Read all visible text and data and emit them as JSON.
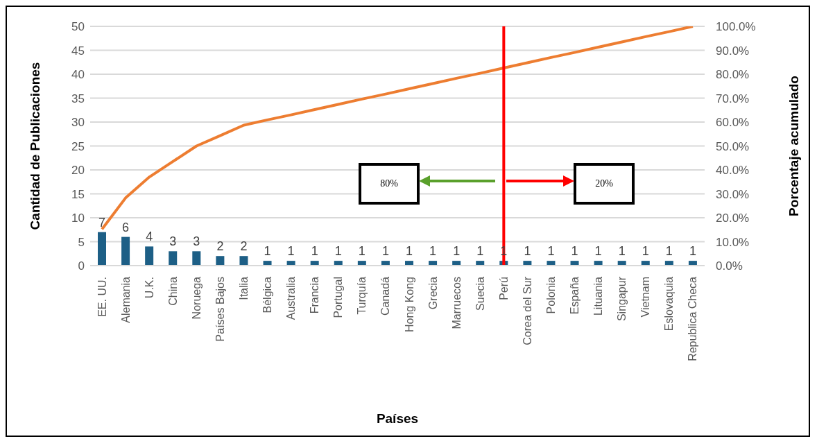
{
  "chart_data": {
    "type": "bar",
    "categories": [
      "EE. UU.",
      "Alemania",
      "U.K.",
      "China",
      "Noruega",
      "Países Bajos",
      "Italia",
      "Bélgica",
      "Australia",
      "Francia",
      "Portugal",
      "Turquía",
      "Canadá",
      "Hong Kong",
      "Grecia",
      "Marruecos",
      "Suecia",
      "Perú",
      "Corea del Sur",
      "Polonia",
      "España",
      "Lituania",
      "Singapur",
      "Vietnam",
      "Eslovaquia",
      "Republica Checa"
    ],
    "series": [
      {
        "color": "#1d5f86",
        "values": [
          7,
          6,
          4,
          3,
          3,
          2,
          2,
          1,
          1,
          1,
          1,
          1,
          1,
          1,
          1,
          1,
          1,
          1,
          1,
          1,
          1,
          1,
          1,
          1,
          1,
          1
        ],
        "value_labels": [
          "7",
          "6",
          "4",
          "3",
          "3",
          "2",
          "2",
          "1",
          "1",
          "1",
          "1",
          "1",
          "1",
          "1",
          "1",
          "1",
          "1",
          "1",
          "1",
          "1",
          "1",
          "1",
          "1",
          "1",
          "1",
          "1"
        ]
      },
      {
        "type": "line",
        "axis": "y2",
        "color": "#ed7d31",
        "values": [
          15.2,
          28.3,
          37.0,
          43.5,
          50.0,
          54.3,
          58.7,
          60.9,
          63.0,
          65.2,
          67.4,
          69.6,
          71.7,
          73.9,
          76.1,
          78.3,
          80.4,
          82.6,
          84.8,
          87.0,
          89.1,
          91.3,
          93.5,
          95.7,
          97.8,
          100.0
        ]
      }
    ],
    "xlabel": "Países",
    "ylabel": "Cantidad de Publicaciones",
    "y2label": "Porcentaje acumulado",
    "ylim": [
      0,
      50
    ],
    "yticks": [
      0,
      5,
      10,
      15,
      20,
      25,
      30,
      35,
      40,
      45,
      50
    ],
    "y2lim": [
      0,
      100
    ],
    "y2ticks": [
      {
        "value": 0,
        "label": "0.0%"
      },
      {
        "value": 10,
        "label": "10.0%"
      },
      {
        "value": 20,
        "label": "20.0%"
      },
      {
        "value": 30,
        "label": "30.0%"
      },
      {
        "value": 40,
        "label": "40.0%"
      },
      {
        "value": 50,
        "label": "50.0%"
      },
      {
        "value": 60,
        "label": "60.0%"
      },
      {
        "value": 70,
        "label": "70.0%"
      },
      {
        "value": 80,
        "label": "80.0%"
      },
      {
        "value": 90,
        "label": "90.0%"
      },
      {
        "value": 100,
        "label": "100.0%"
      }
    ],
    "grid": "y",
    "marker": "none",
    "ref_lines": [
      {
        "axis": "x",
        "value": "Perú",
        "color": "#ff0000"
      }
    ],
    "annotations": [
      "80%",
      "20%"
    ]
  }
}
